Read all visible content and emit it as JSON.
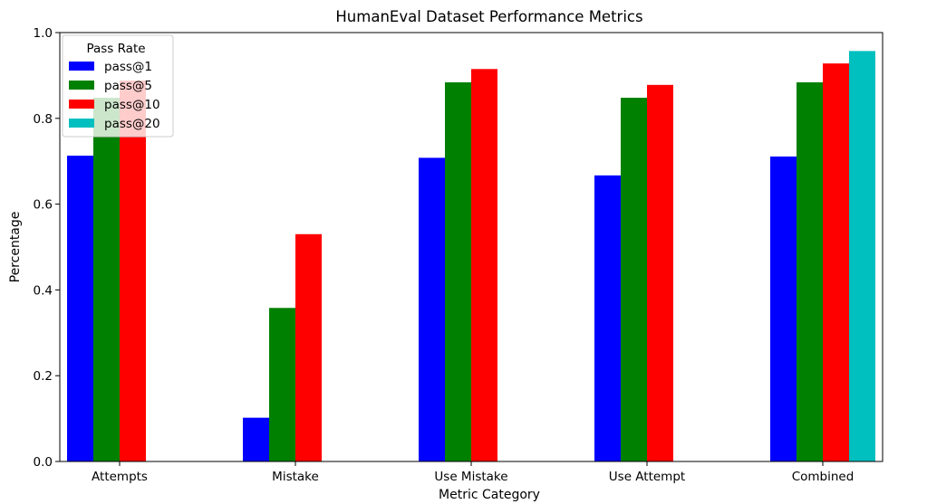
{
  "chart_data": {
    "type": "bar",
    "title": "HumanEval Dataset Performance Metrics",
    "xlabel": "Metric Category",
    "ylabel": "Percentage",
    "ylim": [
      0,
      1.0
    ],
    "yticks": [
      "0.0",
      "0.2",
      "0.4",
      "0.6",
      "0.8",
      "1.0"
    ],
    "grid": false,
    "categories": [
      "Attempts",
      "Mistake",
      "Use Mistake",
      "Use Attempt",
      "Combined"
    ],
    "legend": {
      "title": "Pass Rate",
      "placement": "top-left"
    },
    "series": [
      {
        "name": "pass@1",
        "color": "#0000ff",
        "values": [
          0.713,
          0.102,
          0.708,
          0.667,
          0.711
        ]
      },
      {
        "name": "pass@5",
        "color": "#008000",
        "values": [
          0.848,
          0.358,
          0.884,
          0.848,
          0.884
        ]
      },
      {
        "name": "pass@10",
        "color": "#ff0000",
        "values": [
          0.888,
          0.53,
          0.915,
          0.878,
          0.928
        ]
      },
      {
        "name": "pass@20",
        "color": "#00bfbf",
        "values": [
          null,
          null,
          null,
          null,
          0.957
        ]
      }
    ]
  }
}
